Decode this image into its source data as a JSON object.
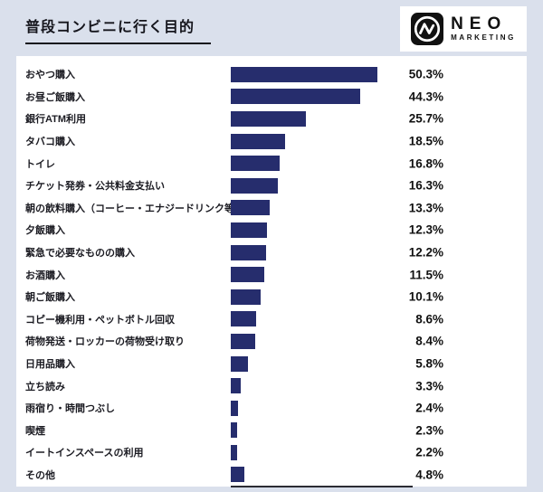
{
  "header": {
    "title": "普段コンビニに行く目的"
  },
  "logo": {
    "name": "NEO",
    "subtitle": "MARKETING"
  },
  "colors": {
    "background": "#dae0ec",
    "bar": "#262d6d",
    "panel": "#ffffff",
    "title_underline": "#15151c"
  },
  "chart_data": {
    "type": "bar",
    "orientation": "horizontal",
    "title": "普段コンビニに行く目的",
    "legend": null,
    "grid": false,
    "xlim": [
      0,
      62.5
    ],
    "categories": [
      "おやつ購入",
      "お昼ご飯購入",
      "銀行ATM利用",
      "タバコ購入",
      "トイレ",
      "チケット発券・公共料金支払い",
      "朝の飲料購入（コーヒー・エナジードリンク等）",
      "夕飯購入",
      "緊急で必要なものの購入",
      "お酒購入",
      "朝ご飯購入",
      "コピー機利用・ペットボトル回収",
      "荷物発送・ロッカーの荷物受け取り",
      "日用品購入",
      "立ち読み",
      "雨宿り・時間つぶし",
      "喫煙",
      "イートインスペースの利用",
      "その他"
    ],
    "values": [
      50.3,
      44.3,
      25.7,
      18.5,
      16.8,
      16.3,
      13.3,
      12.3,
      12.2,
      11.5,
      10.1,
      8.6,
      8.4,
      5.8,
      3.3,
      2.4,
      2.3,
      2.2,
      4.8
    ],
    "value_labels": [
      "50.3%",
      "44.3%",
      "25.7%",
      "18.5%",
      "16.8%",
      "16.3%",
      "13.3%",
      "12.3%",
      "12.2%",
      "11.5%",
      "10.1%",
      "8.6%",
      "8.4%",
      "5.8%",
      "3.3%",
      "2.4%",
      "2.3%",
      "2.2%",
      "4.8%"
    ]
  }
}
